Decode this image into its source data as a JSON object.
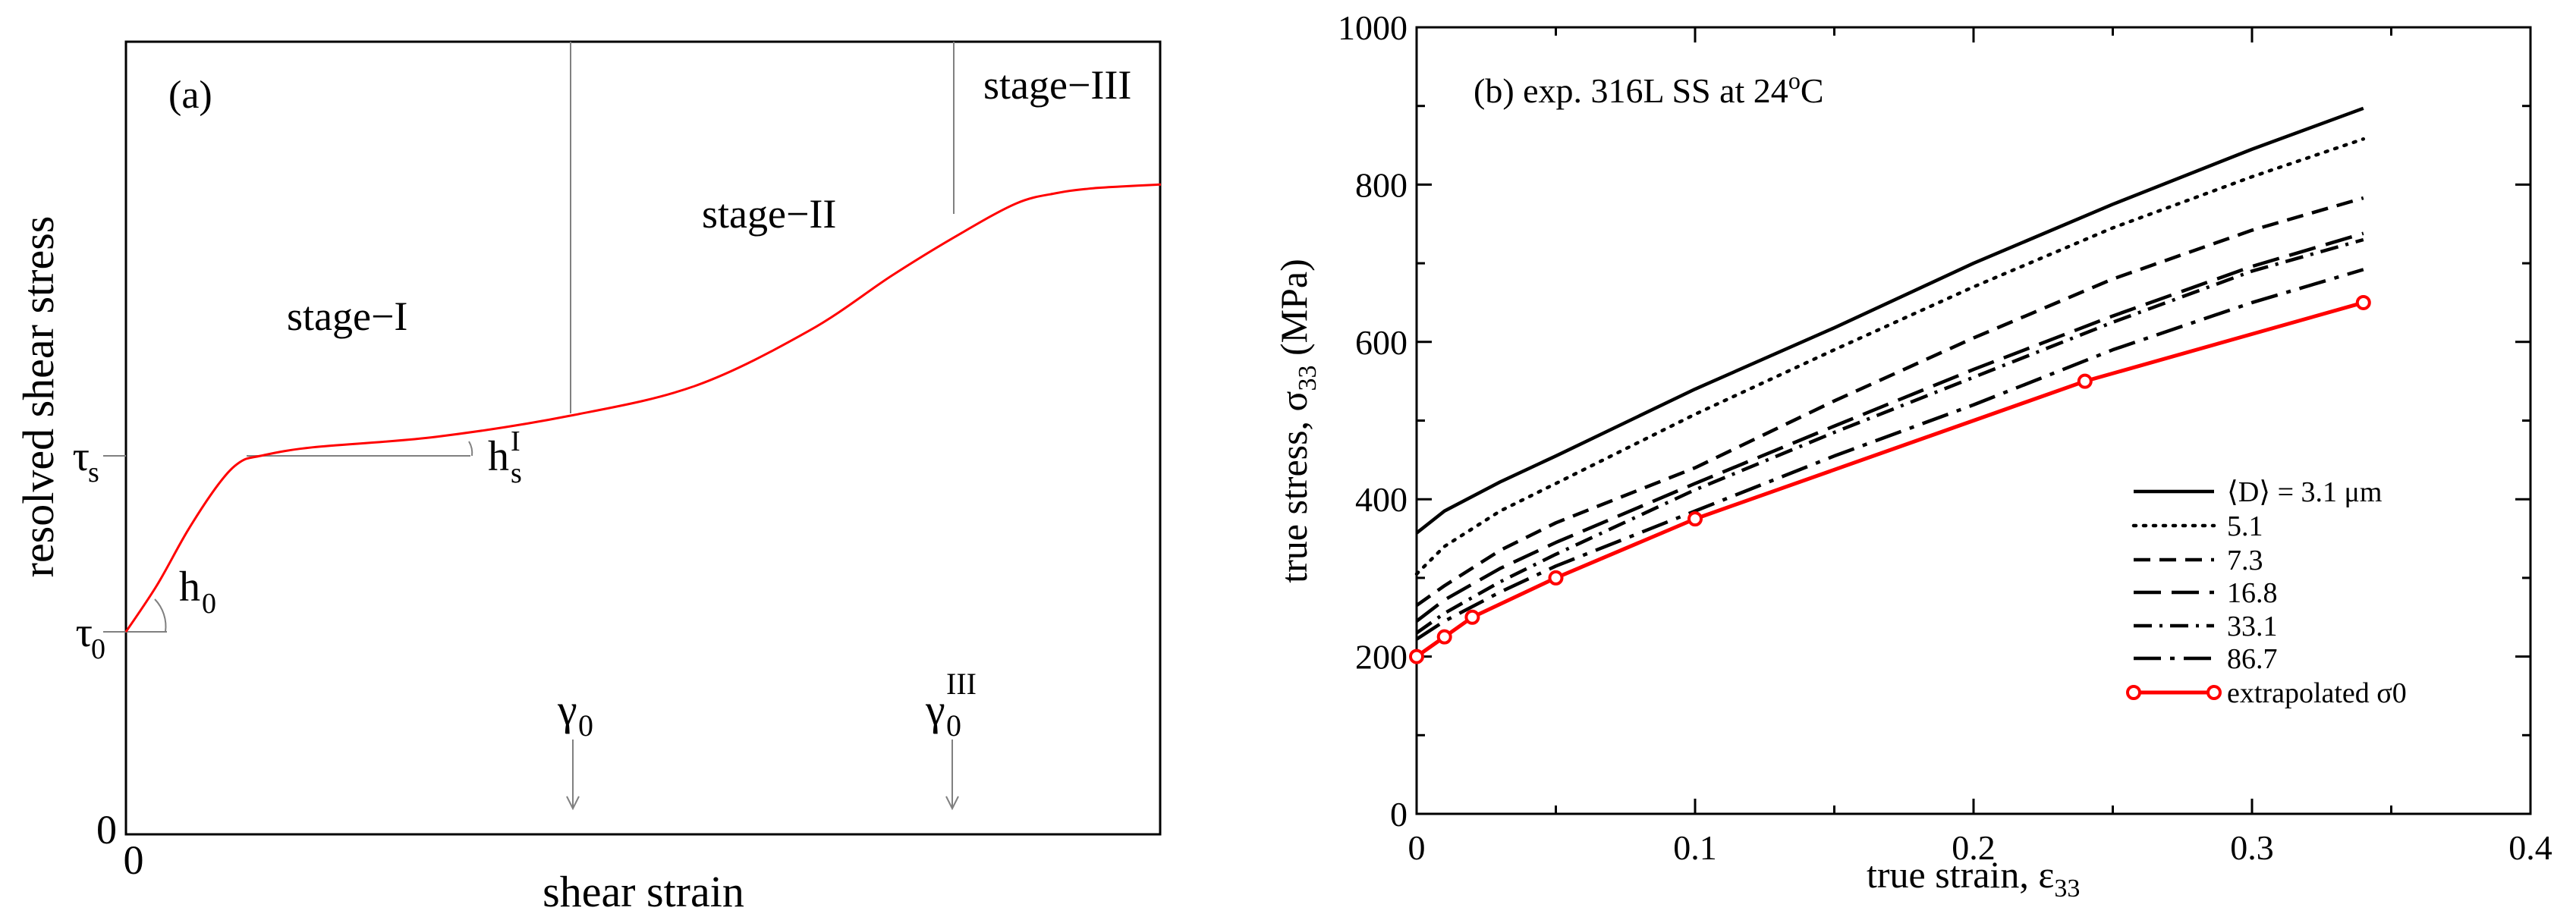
{
  "chart_data": [
    {
      "type": "line",
      "panel_label": "(a)",
      "title": "",
      "xlabel": "shear strain",
      "ylabel": "resolved shear stress",
      "x_tick_labels": [
        "0"
      ],
      "y_tick_labels": [
        "0",
        "τ0",
        "τs"
      ],
      "annotations": {
        "slope_initial": "h0",
        "slope_stage1": "hsI",
        "stage1": "stage−I",
        "stage2": "stage−II",
        "stage3": "stage−III",
        "gamma0": "γ0",
        "gamma0_III": "γ0III"
      },
      "curve_color": "#ff0000",
      "series": [
        {
          "name": "schematic resolved shear stress vs shear strain",
          "x": [
            0,
            3,
            6,
            9,
            11,
            13,
            18,
            30,
            43,
            55,
            66,
            74,
            80,
            86,
            90,
            93,
            96,
            100
          ],
          "y": [
            0,
            11,
            24,
            35,
            40,
            41.5,
            43.5,
            46,
            51,
            58,
            71,
            84,
            93,
            101,
            103.5,
            104.5,
            105,
            105.5
          ]
        }
      ],
      "reference_levels": {
        "tau0": 0,
        "taus": 41.5,
        "gamma0": 43,
        "gamma0_III": 80
      }
    },
    {
      "type": "line",
      "panel_label": "(b)",
      "title": "(b)  exp. 316L SS at 24oC",
      "xlabel": "true strain, ε33",
      "ylabel": "true stress, σ33 (MPa)",
      "xlim": [
        0,
        0.4
      ],
      "ylim": [
        0,
        1000
      ],
      "x_ticks": [
        0,
        0.1,
        0.2,
        0.3,
        0.4
      ],
      "x_tick_labels": [
        "0",
        "0.1",
        "0.2",
        "0.3",
        "0.4"
      ],
      "y_ticks": [
        0,
        200,
        400,
        600,
        800,
        1000
      ],
      "y_tick_labels": [
        "0",
        "200",
        "400",
        "600",
        "800",
        "1000"
      ],
      "legend_position": "lower-right",
      "series": [
        {
          "name": "⟨D⟩ = 3.1 μm",
          "dash": "solid",
          "color": "#000000",
          "x": [
            0,
            0.01,
            0.03,
            0.05,
            0.1,
            0.15,
            0.2,
            0.25,
            0.3,
            0.34
          ],
          "y": [
            357,
            385,
            422,
            455,
            540,
            618,
            700,
            775,
            845,
            897
          ]
        },
        {
          "name": "5.1",
          "dash": "dotted",
          "color": "#000000",
          "x": [
            0,
            0.01,
            0.03,
            0.05,
            0.1,
            0.15,
            0.2,
            0.25,
            0.3,
            0.34
          ],
          "y": [
            305,
            340,
            385,
            420,
            508,
            590,
            670,
            745,
            810,
            858
          ]
        },
        {
          "name": "7.3",
          "dash": "dashed",
          "color": "#000000",
          "x": [
            0,
            0.01,
            0.03,
            0.05,
            0.1,
            0.15,
            0.2,
            0.25,
            0.3,
            0.34
          ],
          "y": [
            265,
            290,
            335,
            370,
            440,
            525,
            605,
            680,
            742,
            783
          ]
        },
        {
          "name": "16.8",
          "dash": "longdash",
          "color": "#000000",
          "x": [
            0,
            0.01,
            0.03,
            0.05,
            0.1,
            0.15,
            0.2,
            0.25,
            0.3,
            0.34
          ],
          "y": [
            245,
            272,
            312,
            345,
            420,
            493,
            565,
            633,
            696,
            738
          ]
        },
        {
          "name": "33.1",
          "dash": "dashdot",
          "color": "#000000",
          "x": [
            0,
            0.01,
            0.03,
            0.05,
            0.1,
            0.15,
            0.2,
            0.25,
            0.3,
            0.34
          ],
          "y": [
            230,
            255,
            295,
            330,
            412,
            485,
            555,
            625,
            690,
            730
          ]
        },
        {
          "name": "86.7",
          "dash": "longdashdot",
          "color": "#000000",
          "x": [
            0,
            0.01,
            0.03,
            0.05,
            0.1,
            0.15,
            0.2,
            0.25,
            0.3,
            0.34
          ],
          "y": [
            222,
            245,
            282,
            315,
            385,
            455,
            520,
            590,
            650,
            692
          ]
        },
        {
          "name": "extrapolated σ0",
          "dash": "solid",
          "color": "#ff0000",
          "markers": true,
          "x": [
            0,
            0.01,
            0.02,
            0.05,
            0.1,
            0.24,
            0.34
          ],
          "y": [
            200,
            225,
            250,
            300,
            375,
            550,
            650
          ]
        }
      ]
    }
  ]
}
